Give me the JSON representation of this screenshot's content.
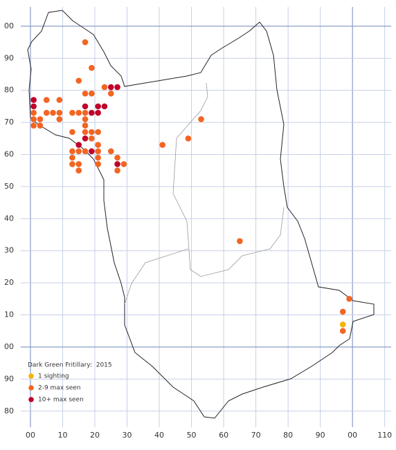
{
  "chart_data": {
    "type": "scatter",
    "title": "Dark Green Fritillary:  2015",
    "xlim": [
      -3,
      112
    ],
    "ylim": [
      -25,
      106
    ],
    "xticks": [
      {
        "value": 0,
        "label": "00"
      },
      10,
      20,
      30,
      40,
      50,
      60,
      70,
      80,
      90,
      {
        "value": 100,
        "label": "00"
      },
      110
    ],
    "yticks": [
      {
        "value": -20,
        "label": "80"
      },
      {
        "value": -10,
        "label": "90"
      },
      {
        "value": 0,
        "label": "00"
      },
      10,
      20,
      30,
      40,
      50,
      60,
      70,
      80,
      90,
      {
        "value": 100,
        "label": "00"
      }
    ],
    "grid": true,
    "legend": "lower left",
    "series": [
      {
        "name": "1 sighting",
        "color": "#f5b400",
        "x": [
          97
        ],
        "values": [
          7
        ]
      },
      {
        "name": "2-9 max seen",
        "color": "#f26522",
        "x": [
          17,
          19,
          15,
          23,
          25,
          17,
          19,
          1,
          1,
          1,
          3,
          3,
          5,
          5,
          7,
          9,
          9,
          9,
          13,
          15,
          17,
          17,
          17,
          17,
          19,
          21,
          13,
          13,
          13,
          13,
          15,
          15,
          15,
          17,
          19,
          21,
          21,
          21,
          21,
          25,
          27,
          27,
          29,
          41,
          49,
          53,
          65,
          99,
          97,
          97
        ],
        "values": [
          95,
          87,
          83,
          81,
          79,
          79,
          79,
          73,
          71,
          69,
          71,
          69,
          77,
          73,
          73,
          77,
          73,
          71,
          73,
          73,
          73,
          71,
          69,
          67,
          67,
          67,
          67,
          61,
          59,
          57,
          61,
          57,
          55,
          61,
          65,
          63,
          61,
          59,
          57,
          61,
          59,
          55,
          57,
          63,
          65,
          71,
          33,
          15,
          11,
          5
        ]
      },
      {
        "name": "10+ max seen",
        "color": "#c0002a",
        "x": [
          1,
          1,
          17,
          19,
          21,
          23,
          21,
          25,
          27,
          17,
          15,
          19,
          27
        ],
        "values": [
          77,
          75,
          75,
          73,
          75,
          75,
          73,
          81,
          81,
          65,
          63,
          61,
          57
        ]
      }
    ]
  }
}
